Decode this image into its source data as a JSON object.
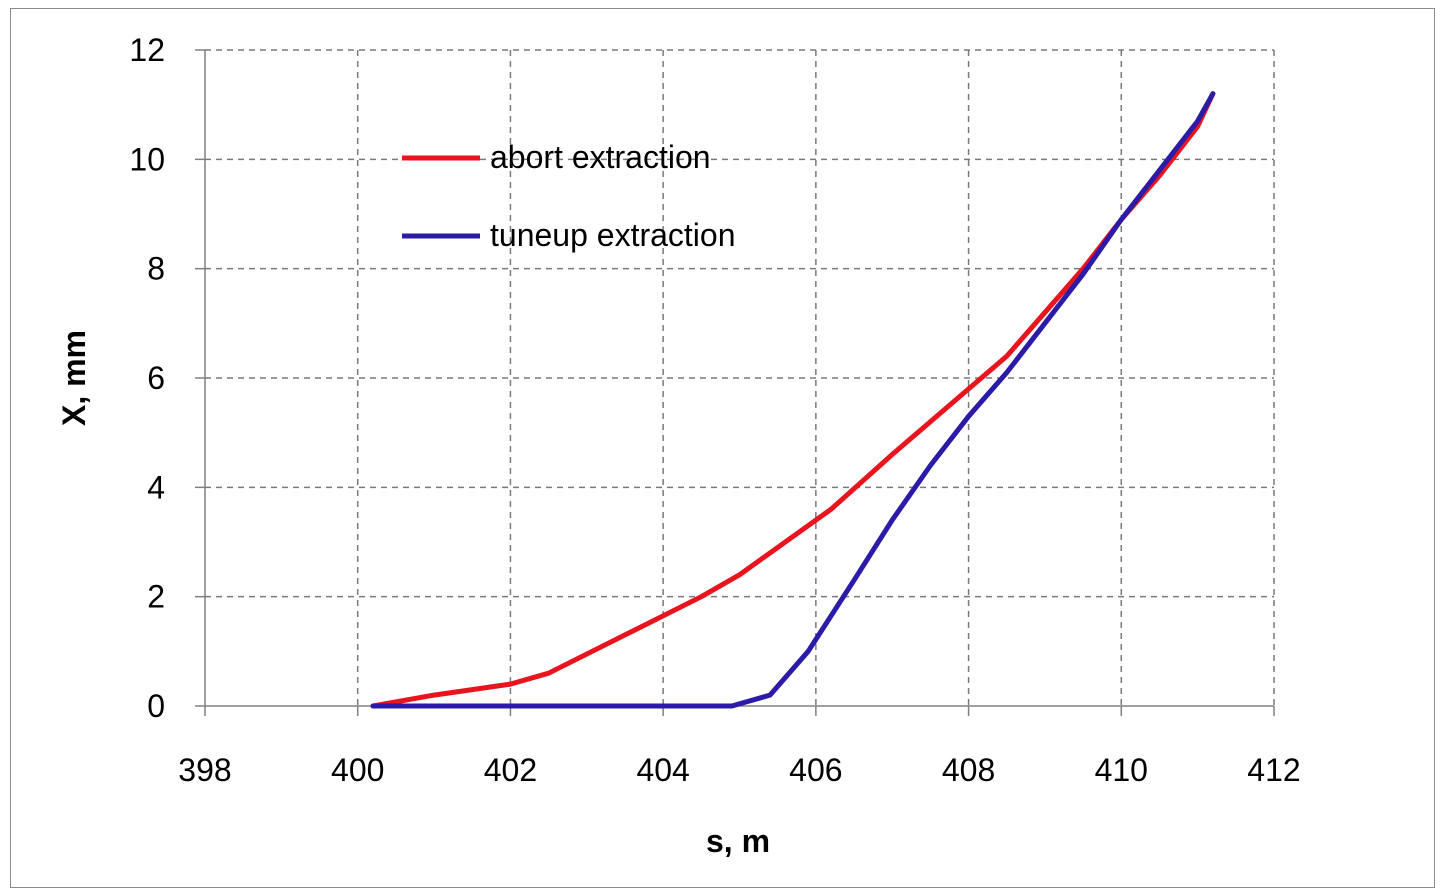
{
  "chart_data": {
    "type": "line",
    "title": "",
    "xlabel": "s, m",
    "ylabel": "X, mm",
    "xlim": [
      398,
      412
    ],
    "ylim": [
      0,
      12
    ],
    "xticks": [
      398,
      400,
      402,
      404,
      406,
      408,
      410,
      412
    ],
    "yticks": [
      0,
      2,
      4,
      6,
      8,
      10,
      12
    ],
    "grid": true,
    "legend_position": "top-left",
    "series": [
      {
        "name": "abort extraction",
        "color": "#e8141e",
        "x": [
          400.2,
          401.0,
          402.0,
          402.5,
          403.5,
          404.5,
          405.0,
          406.2,
          407.0,
          408.0,
          408.5,
          409.5,
          410.0,
          410.5,
          411.0,
          411.2
        ],
        "y": [
          0.0,
          0.2,
          0.4,
          0.6,
          1.3,
          2.0,
          2.4,
          3.6,
          4.6,
          5.8,
          6.4,
          8.0,
          8.9,
          9.7,
          10.6,
          11.2
        ]
      },
      {
        "name": "tuneup extraction",
        "color": "#2a1ba8",
        "x": [
          400.2,
          401.0,
          402.0,
          403.0,
          404.0,
          404.9,
          405.4,
          405.9,
          406.5,
          407.0,
          407.5,
          408.0,
          408.5,
          409.0,
          409.5,
          410.0,
          410.5,
          411.0,
          411.2
        ],
        "y": [
          0.0,
          0.0,
          0.0,
          0.0,
          0.0,
          0.0,
          0.2,
          1.0,
          2.3,
          3.4,
          4.4,
          5.3,
          6.1,
          7.0,
          7.9,
          8.9,
          9.8,
          10.7,
          11.2
        ]
      }
    ]
  }
}
